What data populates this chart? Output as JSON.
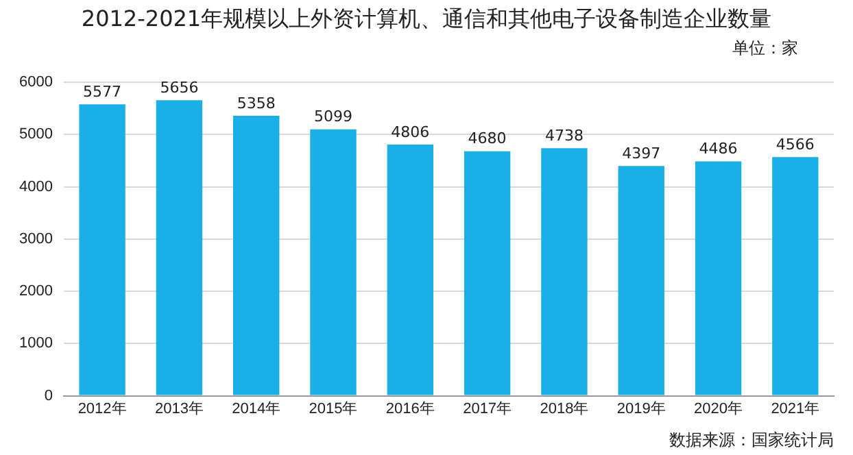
{
  "chart_data": {
    "type": "bar",
    "title": "2012-2021年规模以上外资计算机、通信和其他电子设备制造企业数量",
    "categories": [
      "2012年",
      "2013年",
      "2014年",
      "2015年",
      "2016年",
      "2017年",
      "2018年",
      "2019年",
      "2020年",
      "2021年"
    ],
    "values": [
      5577,
      5656,
      5358,
      5099,
      4806,
      4680,
      4738,
      4397,
      4486,
      4566
    ],
    "color": "#1aafe6",
    "ylim": [
      0,
      6000
    ],
    "yticks": [
      0,
      1000,
      2000,
      3000,
      4000,
      5000,
      6000
    ],
    "grid": "y",
    "data_labels": true,
    "annotations": [
      "单位：家",
      "数据来源：国家统计局"
    ]
  }
}
